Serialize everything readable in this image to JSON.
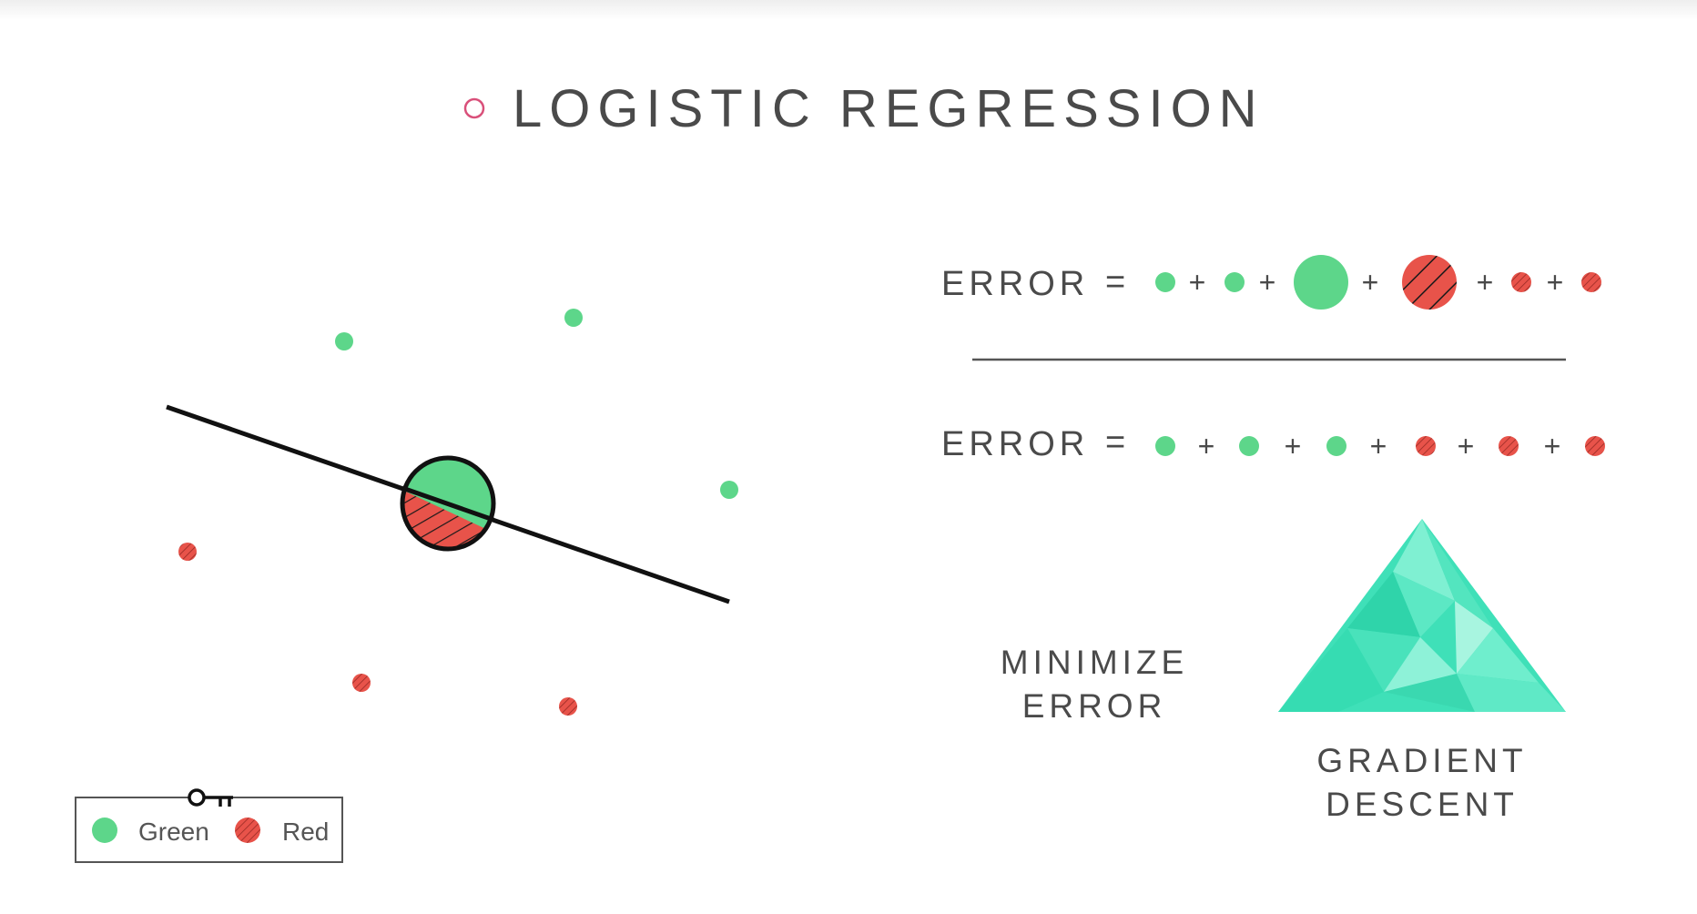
{
  "header": {
    "title": "LOGISTIC REGRESSION",
    "bullet_color": "#d9507a"
  },
  "colors": {
    "green": "#5dd68a",
    "red": "#e8534a",
    "line": "#111111",
    "text": "#4a4a4a",
    "mountain": "#3fe0b8"
  },
  "equations": [
    {
      "label": "ERROR",
      "equals": "=",
      "terms": [
        {
          "color": "green",
          "size": "small"
        },
        {
          "color": "green",
          "size": "small"
        },
        {
          "color": "green",
          "size": "large"
        },
        {
          "color": "red",
          "size": "large"
        },
        {
          "color": "red",
          "size": "small"
        },
        {
          "color": "red",
          "size": "small"
        }
      ]
    },
    {
      "label": "ERROR",
      "equals": "=",
      "terms": [
        {
          "color": "green",
          "size": "small"
        },
        {
          "color": "green",
          "size": "small"
        },
        {
          "color": "green",
          "size": "small"
        },
        {
          "color": "red",
          "size": "small"
        },
        {
          "color": "red",
          "size": "small"
        },
        {
          "color": "red",
          "size": "small"
        }
      ]
    }
  ],
  "plus_sign": "+",
  "minimize": {
    "line1": "MINIMIZE",
    "line2": "ERROR"
  },
  "gradient": {
    "line1": "GRADIENT",
    "line2": "DESCENT"
  },
  "legend": {
    "icon": "key-icon",
    "green_label": "Green",
    "red_label": "Red"
  }
}
